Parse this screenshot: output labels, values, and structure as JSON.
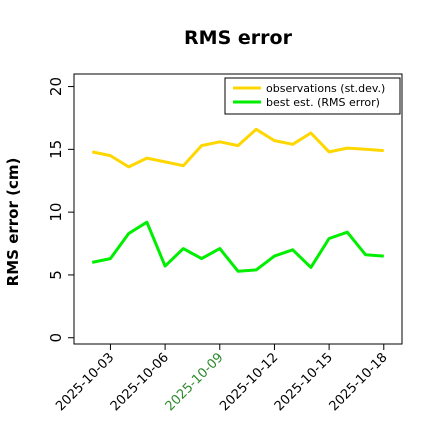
{
  "chart_data": {
    "type": "line",
    "title": "RMS error",
    "ylabel": "RMS error (cm)",
    "xlabel": "",
    "ylim": [
      -0.5,
      21
    ],
    "yticks": [
      0,
      5,
      10,
      15,
      20
    ],
    "x": [
      "2025-10-02",
      "2025-10-03",
      "2025-10-04",
      "2025-10-05",
      "2025-10-06",
      "2025-10-07",
      "2025-10-08",
      "2025-10-09",
      "2025-10-10",
      "2025-10-11",
      "2025-10-12",
      "2025-10-13",
      "2025-10-14",
      "2025-10-15",
      "2025-10-16",
      "2025-10-17",
      "2025-10-18"
    ],
    "xlim": [
      "2025-10-01",
      "2025-10-19"
    ],
    "xticks": [
      "2025-10-03",
      "2025-10-06",
      "2025-10-09",
      "2025-10-12",
      "2025-10-15",
      "2025-10-18"
    ],
    "highlight_tick": "2025-10-09",
    "highlight_color": "#2e8b2e",
    "series": [
      {
        "name": "observations (st.dev.)",
        "color": "#ffd700",
        "values": [
          14.8,
          14.5,
          13.6,
          14.3,
          14.0,
          13.7,
          15.3,
          15.6,
          15.3,
          16.6,
          15.7,
          15.4,
          16.3,
          14.8,
          15.1,
          15.0,
          14.9
        ]
      },
      {
        "name": "best est. (RMS error)",
        "color": "#00ee00",
        "values": [
          6.0,
          6.3,
          8.3,
          9.2,
          5.7,
          7.1,
          6.3,
          7.1,
          5.3,
          5.4,
          6.5,
          7.0,
          5.6,
          7.9,
          8.4,
          6.6,
          6.5
        ]
      }
    ],
    "legend_position": "top-right",
    "grid": false
  }
}
